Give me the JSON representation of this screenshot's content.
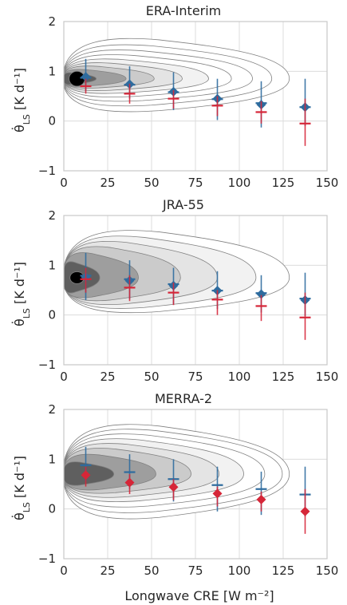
{
  "colors": {
    "background": "#ffffff",
    "grid": "#dcdcdc",
    "axis_frame": "#c8c8c8",
    "contour_line": "#808080",
    "fill_levels": [
      "#f2f2f2",
      "#e4e4e4",
      "#cbcbcb",
      "#9e9e9e",
      "#5f5f5f",
      "#000000"
    ],
    "blue_series": "#2e6b9e",
    "red_series": "#d62638",
    "purple_errorbar": "#7a3b80"
  },
  "shared": {
    "xlabel": "Longwave CRE [W m⁻²]",
    "ylabel": "θ̇",
    "ylabel_sub": "LS",
    "ylabel_units": " [K d⁻¹]",
    "xticks": [
      "0",
      "25",
      "50",
      "75",
      "100",
      "125",
      "150"
    ],
    "yticks": [
      "−1",
      "0",
      "1",
      "2"
    ]
  },
  "chart_data": [
    {
      "type": "scatter",
      "title": "ERA-Interim",
      "xlabel": "Longwave CRE [W m⁻²]",
      "ylabel": "θ̇_LS [K d⁻¹]",
      "xlim": [
        0,
        150
      ],
      "ylim": [
        -1,
        2
      ],
      "grid": true,
      "x": [
        12.5,
        37.5,
        62.5,
        87.5,
        112.5,
        137.5
      ],
      "series": [
        {
          "marker": "diamond",
          "color": "#2e6b9e",
          "mean": [
            0.89,
            0.74,
            0.59,
            0.45,
            0.33,
            0.28
          ],
          "median": [
            0.87,
            0.73,
            0.58,
            0.44,
            0.36,
            0.28
          ],
          "err_low": [
            0.6,
            0.45,
            0.22,
            0.02,
            -0.13,
            -0.1
          ],
          "err_high": [
            1.25,
            1.1,
            0.98,
            0.85,
            0.8,
            0.85
          ]
        },
        {
          "marker": "median-bar",
          "color": "#d62638",
          "median": [
            0.7,
            0.55,
            0.45,
            0.31,
            0.18,
            -0.05
          ],
          "err_low": [
            0.55,
            0.35,
            0.25,
            0.1,
            -0.05,
            -0.5
          ],
          "err_high": [
            0.85,
            0.75,
            0.62,
            0.5,
            0.4,
            0.45
          ]
        }
      ],
      "density_contours": {
        "center": [
          6.5,
          0.85
        ],
        "widths": [
          122,
          112,
          101,
          89,
          76,
          61,
          45,
          29,
          12
        ],
        "height_left": [
          0.85,
          0.72,
          0.61,
          0.51,
          0.42,
          0.34,
          0.27,
          0.2,
          0.13
        ],
        "bottom_factor": [
          0.82,
          0.8,
          0.78,
          0.76,
          0.74,
          0.74,
          0.74,
          0.82,
          0.95
        ],
        "dark_core": {
          "width": 9,
          "height": 0.3
        }
      }
    },
    {
      "type": "scatter",
      "title": "JRA-55",
      "xlabel": "Longwave CRE [W m⁻²]",
      "ylabel": "θ̇_LS [K d⁻¹]",
      "xlim": [
        0,
        150
      ],
      "ylim": [
        -1,
        2
      ],
      "grid": true,
      "x": [
        12.5,
        37.5,
        62.5,
        87.5,
        112.5,
        137.5
      ],
      "series": [
        {
          "marker": "diamond",
          "color": "#2e6b9e",
          "mean": [
            0.76,
            0.69,
            0.59,
            0.49,
            0.42,
            0.3
          ],
          "median": [
            0.79,
            0.72,
            0.62,
            0.49,
            0.44,
            0.33
          ],
          "err_low": [
            0.3,
            0.32,
            0.22,
            0.12,
            0.05,
            -0.02
          ],
          "err_high": [
            1.25,
            1.1,
            0.95,
            0.88,
            0.8,
            0.85
          ]
        },
        {
          "marker": "median-bar",
          "color": "#d62638",
          "median": [
            0.72,
            0.55,
            0.45,
            0.31,
            0.18,
            -0.05
          ],
          "err_low": [
            0.45,
            0.28,
            0.2,
            0.0,
            -0.12,
            -0.5
          ],
          "err_high": [
            0.95,
            0.8,
            0.65,
            0.5,
            0.4,
            0.45
          ]
        }
      ],
      "density_contours": {
        "center": [
          6.5,
          0.75
        ],
        "widths": [
          122,
          103,
          81,
          60,
          36,
          14
        ],
        "height_left": [
          1.0,
          0.88,
          0.77,
          0.66,
          0.53,
          0.34
        ],
        "bottom_factor": [
          0.74,
          0.74,
          0.74,
          0.74,
          0.8,
          0.95
        ],
        "dark_core": {
          "width": 8,
          "height": 0.24
        }
      }
    },
    {
      "type": "scatter",
      "title": "MERRA-2",
      "xlabel": "Longwave CRE [W m⁻²]",
      "ylabel": "θ̇_LS [K d⁻¹]",
      "xlim": [
        0,
        150
      ],
      "ylim": [
        -1,
        2
      ],
      "grid": true,
      "x": [
        12.5,
        37.5,
        62.5,
        87.5,
        112.5,
        137.5
      ],
      "series": [
        {
          "marker": "median-bar",
          "color": "#2e6b9e",
          "median": [
            0.88,
            0.74,
            0.6,
            0.48,
            0.4,
            0.29
          ],
          "err_low": [
            0.55,
            0.4,
            0.15,
            -0.05,
            -0.12,
            -0.15
          ],
          "err_high": [
            1.25,
            1.1,
            1.0,
            0.85,
            0.75,
            0.85
          ]
        },
        {
          "marker": "diamond",
          "color": "#d62638",
          "mean": [
            0.68,
            0.53,
            0.44,
            0.31,
            0.19,
            -0.05
          ],
          "err_low": [
            0.45,
            0.3,
            0.18,
            0.05,
            -0.05,
            -0.5
          ],
          "err_high": [
            0.85,
            0.7,
            0.6,
            0.45,
            0.35,
            0.4
          ]
        }
      ],
      "density_contours": {
        "center": [
          6.5,
          0.7
        ],
        "widths": [
          122,
          118,
          108,
          96,
          82,
          66,
          46,
          22
        ],
        "height_left": [
          1.05,
          0.95,
          0.85,
          0.75,
          0.65,
          0.55,
          0.42,
          0.26
        ],
        "bottom_factor": [
          0.9,
          0.86,
          0.82,
          0.78,
          0.76,
          0.74,
          0.8,
          0.92
        ],
        "dark_core": {
          "width": 0,
          "height": 0
        }
      }
    }
  ]
}
